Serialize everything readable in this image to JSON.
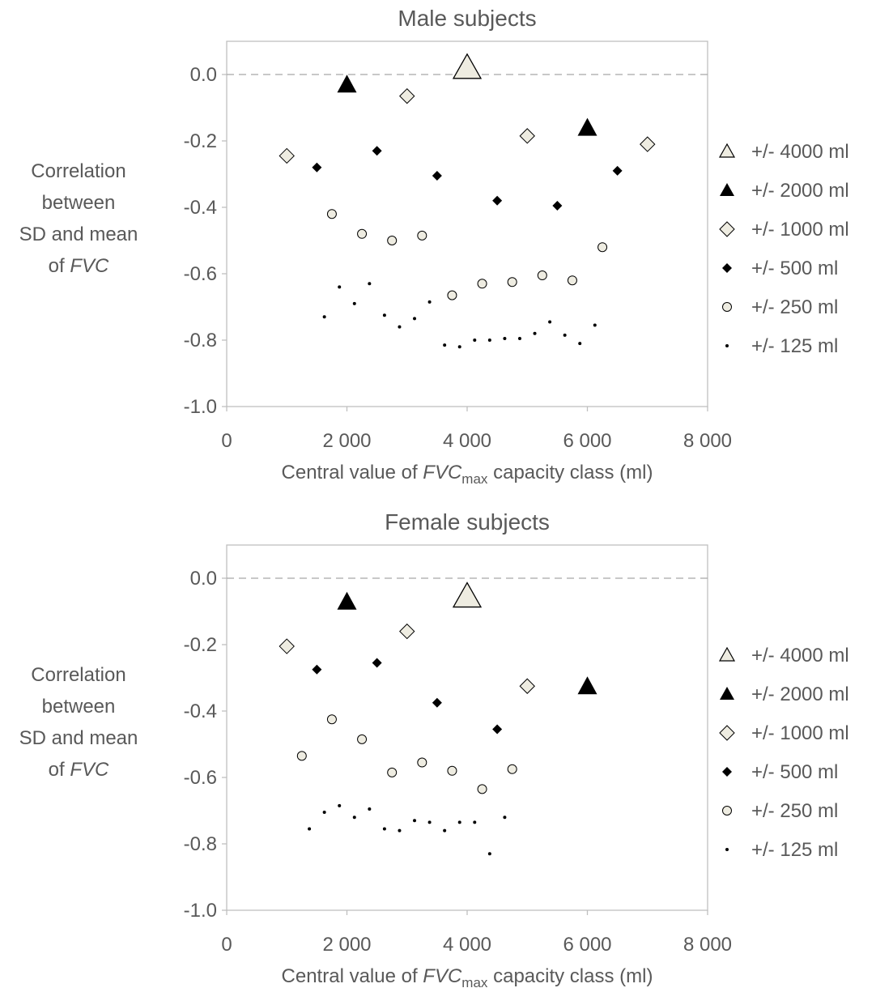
{
  "chart_data": [
    {
      "type": "scatter",
      "title": "Male subjects",
      "xlabel": "Central value of FVCmax capacity class  (ml)",
      "xlabel_parts": {
        "pre": "Central value of ",
        "var": "FVC",
        "sub": "max",
        "post": " capacity class  (ml)"
      },
      "ylabel_lines": [
        "Correlation",
        "between",
        "SD and mean"
      ],
      "ylabel_last": {
        "pre": "of ",
        "var": "FVC"
      },
      "xlim": [
        0,
        8000
      ],
      "ylim": [
        -1.0,
        0.1
      ],
      "xticks": [
        0,
        2000,
        4000,
        6000,
        8000
      ],
      "xtick_labels": [
        "0",
        "2 000",
        "4 000",
        "6 000",
        "8 000"
      ],
      "yticks": [
        0.0,
        -0.2,
        -0.4,
        -0.6,
        -0.8,
        -1.0
      ],
      "ytick_labels": [
        "0.0",
        "-0.2",
        "-0.4",
        "-0.6",
        "-0.8",
        "-1.0"
      ],
      "reference_line_y": 0.0,
      "legend_position": "right",
      "series": [
        {
          "name": "+/- 4000 ml",
          "marker": "triangle-open-large",
          "points": [
            [
              4000,
              0.02
            ]
          ]
        },
        {
          "name": "+/- 2000 ml",
          "marker": "triangle-filled",
          "points": [
            [
              2000,
              -0.03
            ],
            [
              6000,
              -0.16
            ]
          ]
        },
        {
          "name": "+/- 1000 ml",
          "marker": "diamond-open",
          "points": [
            [
              1000,
              -0.245
            ],
            [
              3000,
              -0.065
            ],
            [
              5000,
              -0.185
            ],
            [
              7000,
              -0.21
            ]
          ]
        },
        {
          "name": "+/- 500 ml",
          "marker": "diamond-filled",
          "points": [
            [
              1500,
              -0.28
            ],
            [
              2500,
              -0.23
            ],
            [
              3500,
              -0.305
            ],
            [
              4500,
              -0.38
            ],
            [
              5500,
              -0.395
            ],
            [
              6500,
              -0.29
            ]
          ]
        },
        {
          "name": "+/- 250 ml",
          "marker": "circle-open",
          "points": [
            [
              1750,
              -0.42
            ],
            [
              2250,
              -0.48
            ],
            [
              2750,
              -0.5
            ],
            [
              3250,
              -0.485
            ],
            [
              3750,
              -0.665
            ],
            [
              4250,
              -0.63
            ],
            [
              4750,
              -0.625
            ],
            [
              5250,
              -0.605
            ],
            [
              5750,
              -0.62
            ],
            [
              6250,
              -0.52
            ]
          ]
        },
        {
          "name": "+/- 125 ml",
          "marker": "dot",
          "points": [
            [
              1625,
              -0.73
            ],
            [
              1875,
              -0.64
            ],
            [
              2125,
              -0.69
            ],
            [
              2375,
              -0.63
            ],
            [
              2625,
              -0.725
            ],
            [
              2875,
              -0.76
            ],
            [
              3125,
              -0.735
            ],
            [
              3375,
              -0.685
            ],
            [
              3625,
              -0.815
            ],
            [
              3875,
              -0.82
            ],
            [
              4125,
              -0.8
            ],
            [
              4375,
              -0.8
            ],
            [
              4625,
              -0.795
            ],
            [
              4875,
              -0.795
            ],
            [
              5125,
              -0.78
            ],
            [
              5375,
              -0.745
            ],
            [
              5625,
              -0.785
            ],
            [
              5875,
              -0.81
            ],
            [
              6125,
              -0.755
            ]
          ]
        }
      ]
    },
    {
      "type": "scatter",
      "title": "Female subjects",
      "xlabel": "Central value of FVCmax capacity class  (ml)",
      "xlabel_parts": {
        "pre": "Central value of ",
        "var": "FVC",
        "sub": "max",
        "post": " capacity class  (ml)"
      },
      "ylabel_lines": [
        "Correlation",
        "between",
        "SD and mean"
      ],
      "ylabel_last": {
        "pre": "of ",
        "var": "FVC"
      },
      "xlim": [
        0,
        8000
      ],
      "ylim": [
        -1.0,
        0.1
      ],
      "xticks": [
        0,
        2000,
        4000,
        6000,
        8000
      ],
      "xtick_labels": [
        "0",
        "2 000",
        "4 000",
        "6 000",
        "8 000"
      ],
      "yticks": [
        0.0,
        -0.2,
        -0.4,
        -0.6,
        -0.8,
        -1.0
      ],
      "ytick_labels": [
        "0.0",
        "-0.2",
        "-0.4",
        "-0.6",
        "-0.8",
        "-1.0"
      ],
      "reference_line_y": 0.0,
      "legend_position": "right",
      "series": [
        {
          "name": "+/- 4000 ml",
          "marker": "triangle-open-large",
          "points": [
            [
              4000,
              -0.055
            ]
          ]
        },
        {
          "name": "+/- 2000 ml",
          "marker": "triangle-filled",
          "points": [
            [
              2000,
              -0.07
            ],
            [
              6000,
              -0.325
            ]
          ]
        },
        {
          "name": "+/- 1000 ml",
          "marker": "diamond-open",
          "points": [
            [
              1000,
              -0.205
            ],
            [
              3000,
              -0.16
            ],
            [
              5000,
              -0.325
            ]
          ]
        },
        {
          "name": "+/- 500 ml",
          "marker": "diamond-filled",
          "points": [
            [
              1500,
              -0.275
            ],
            [
              2500,
              -0.255
            ],
            [
              3500,
              -0.375
            ],
            [
              4500,
              -0.455
            ]
          ]
        },
        {
          "name": "+/- 250 ml",
          "marker": "circle-open",
          "points": [
            [
              1250,
              -0.535
            ],
            [
              1750,
              -0.425
            ],
            [
              2250,
              -0.485
            ],
            [
              2750,
              -0.585
            ],
            [
              3250,
              -0.555
            ],
            [
              3750,
              -0.58
            ],
            [
              4250,
              -0.635
            ],
            [
              4750,
              -0.575
            ]
          ]
        },
        {
          "name": "+/- 125 ml",
          "marker": "dot",
          "points": [
            [
              1375,
              -0.755
            ],
            [
              1625,
              -0.705
            ],
            [
              1875,
              -0.685
            ],
            [
              2125,
              -0.72
            ],
            [
              2375,
              -0.695
            ],
            [
              2625,
              -0.755
            ],
            [
              2875,
              -0.76
            ],
            [
              3125,
              -0.73
            ],
            [
              3375,
              -0.735
            ],
            [
              3625,
              -0.76
            ],
            [
              3875,
              -0.735
            ],
            [
              4125,
              -0.735
            ],
            [
              4375,
              -0.83
            ],
            [
              4625,
              -0.72
            ]
          ]
        }
      ]
    }
  ],
  "colors": {
    "text": "#595959",
    "frame": "#bfbfbf",
    "reference_line": "#a6a6a6",
    "marker_open_fill": "#eeece1",
    "marker_filled": "#000000"
  }
}
